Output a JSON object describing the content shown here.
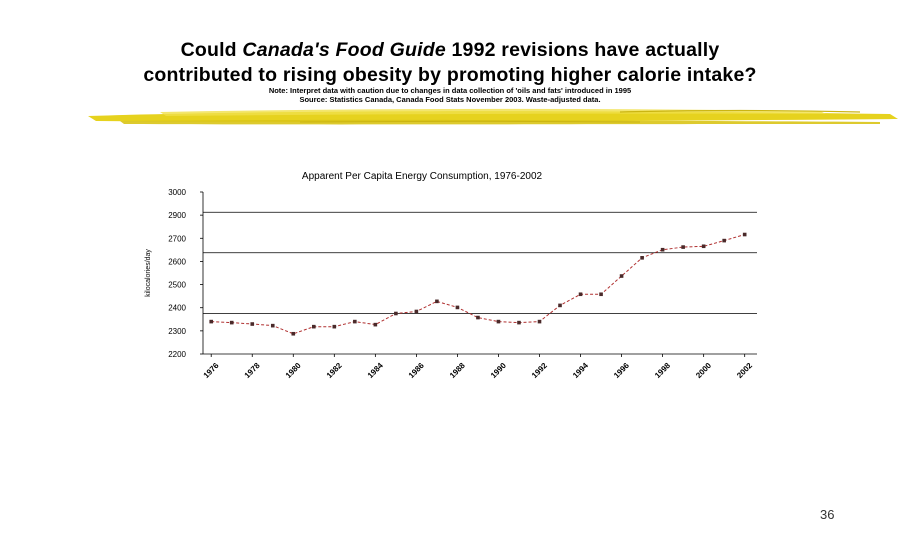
{
  "slide": {
    "title_line1_before": "Could ",
    "title_line1_em": "Canada's Food Guide",
    "title_line1_after": " 1992 revisions have actually",
    "title_line2": "contributed to rising obesity by promoting higher calorie intake?",
    "note_line1": "Note: Interpret data with caution due to changes in data collection of 'oils and fats' introduced in 1995",
    "note_line2": "Source: Statistics Canada, Canada Food Stats November 2003. Waste-adjusted data.",
    "page_number": "36",
    "accent_color": "#e6d21e"
  },
  "chart_data": {
    "type": "line",
    "title": "Apparent Per Capita Energy Consumption, 1976-2002",
    "xlabel": "",
    "ylabel": "kilocalories/day",
    "ylim": [
      2200,
      3000
    ],
    "yticks": [
      "3000",
      "2900",
      "2700",
      "2600",
      "2500",
      "2400",
      "2300",
      "2200"
    ],
    "xticks": [
      "1976",
      "1978",
      "1980",
      "1982",
      "1984",
      "1986",
      "1988",
      "1990",
      "1992",
      "1994",
      "1996",
      "1998",
      "2000",
      "2002"
    ],
    "gridlines": [
      2400,
      2700,
      2900
    ],
    "line_color": "#b03030",
    "series": [
      {
        "x": [
          1976,
          1977,
          1978,
          1979,
          1980,
          1981,
          1982,
          1983,
          1984,
          1985,
          1986,
          1987,
          1988,
          1989,
          1990,
          1991,
          1992,
          1993,
          1994,
          1995,
          1996,
          1997,
          1998,
          1999,
          2000,
          2001,
          2002
        ],
        "values": [
          2360,
          2355,
          2348,
          2340,
          2300,
          2335,
          2335,
          2360,
          2345,
          2400,
          2410,
          2460,
          2430,
          2380,
          2360,
          2355,
          2360,
          2440,
          2495,
          2495,
          2585,
          2675,
          2715,
          2728,
          2732,
          2760,
          2790
        ]
      }
    ]
  }
}
